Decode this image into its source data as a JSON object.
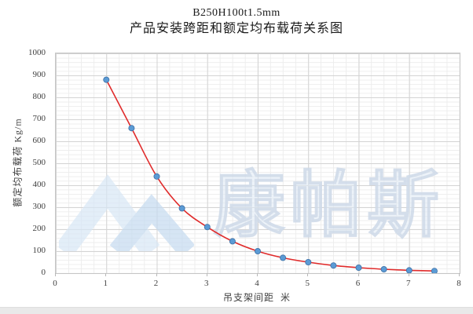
{
  "chart_data": {
    "type": "scatter",
    "title": "B250H100t1.5mm",
    "subtitle": "产品安装跨距和额定均布载荷关系图",
    "xlabel": "吊支架间距  米",
    "ylabel": "额定均布载荷 Kg/m",
    "x": [
      1,
      1.5,
      2,
      2.5,
      3,
      3.5,
      4,
      4.5,
      5,
      5.5,
      6,
      6.5,
      7,
      7.5
    ],
    "series": [
      {
        "name": "额定均布载荷",
        "values": [
          880,
          660,
          440,
          295,
          210,
          145,
          100,
          70,
          50,
          35,
          25,
          18,
          13,
          10
        ],
        "point_color": "#5b9bd5",
        "point_edge_color": "#3d6fa5"
      }
    ],
    "trendline": {
      "type": "smooth",
      "color": "#e02b2b",
      "width": 1.6
    },
    "xlim": [
      0,
      8
    ],
    "ylim": [
      0,
      1000
    ],
    "x_ticks": [
      0,
      1,
      2,
      3,
      4,
      5,
      6,
      7,
      8
    ],
    "y_ticks": [
      0,
      100,
      200,
      300,
      400,
      500,
      600,
      700,
      800,
      900,
      1000
    ],
    "grid": "major and minor gridlines on",
    "legend_position": "none"
  },
  "watermark": {
    "text": "康帕斯",
    "logo": "mountain-chevrons",
    "logo_color_light": "#d8e7f6",
    "logo_color_dark": "#c5dbf0",
    "text_color": "#dfe9f4"
  }
}
